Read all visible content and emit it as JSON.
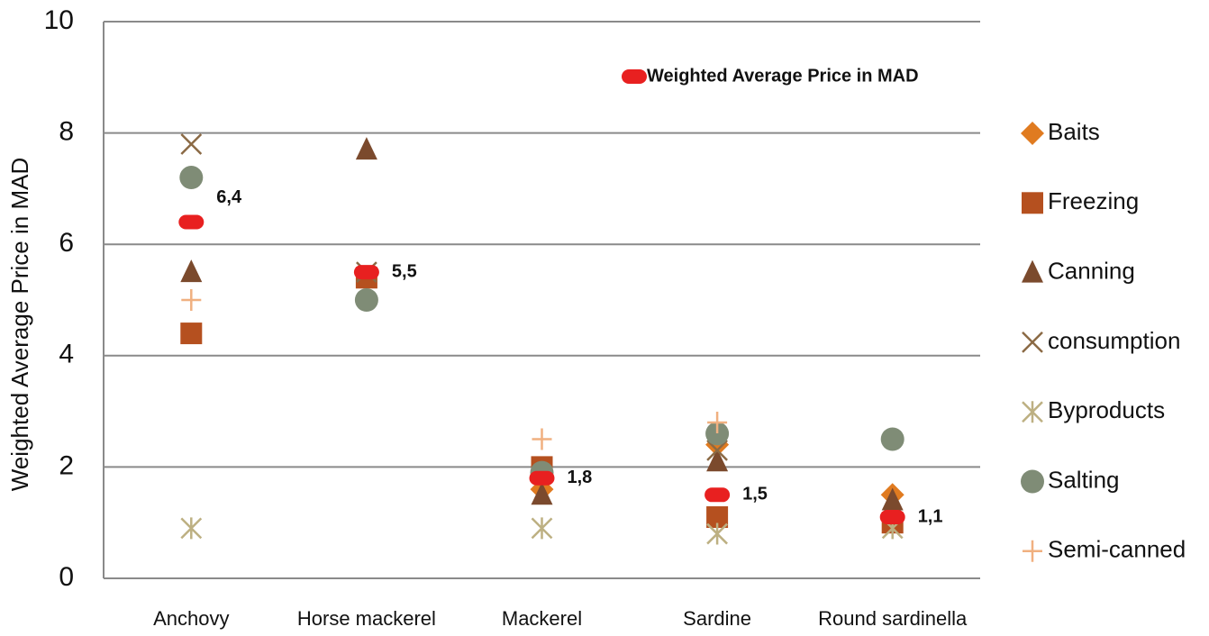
{
  "chart_data": {
    "type": "scatter",
    "ylabel": "Weighted Average Price in MAD",
    "categories": [
      "Anchovy",
      "Horse mackerel",
      "Mackerel",
      "Sardine",
      "Round sardinella"
    ],
    "ylim": [
      0,
      10
    ],
    "yticks": [
      0,
      2,
      4,
      6,
      8,
      10
    ],
    "grid": true,
    "legend": "right",
    "series": [
      {
        "name": "Baits",
        "color": "#e07b20",
        "marker": "diamond",
        "values": [
          null,
          null,
          1.6,
          2.4,
          1.5
        ]
      },
      {
        "name": "Freezing",
        "color": "#b5501f",
        "marker": "square",
        "values": [
          4.4,
          5.4,
          2.0,
          1.1,
          1.0
        ]
      },
      {
        "name": "Canning",
        "color": "#7b4a2d",
        "marker": "triangle",
        "values": [
          5.5,
          7.7,
          1.5,
          2.1,
          1.4
        ]
      },
      {
        "name": "consumption",
        "color": "#8b6a45",
        "marker": "x",
        "values": [
          7.8,
          5.5,
          null,
          2.3,
          null
        ]
      },
      {
        "name": "Byproducts",
        "color": "#bdb082",
        "marker": "asterisk",
        "values": [
          0.9,
          null,
          0.9,
          0.8,
          0.9
        ]
      },
      {
        "name": "Salting",
        "color": "#7f8c76",
        "marker": "circle",
        "values": [
          7.2,
          5.0,
          1.9,
          2.6,
          2.5
        ]
      },
      {
        "name": "Semi-canned",
        "color": "#f0b080",
        "marker": "plus",
        "values": [
          5.0,
          null,
          2.5,
          2.8,
          null
        ]
      },
      {
        "name": "Weighted Average Price in MAD",
        "color": "#e82020",
        "marker": "pill",
        "legend": "top",
        "values": [
          6.4,
          5.5,
          1.8,
          1.5,
          1.1
        ],
        "value_labels": [
          "6,4",
          "5,5",
          "1,8",
          "1,5",
          "1,1"
        ]
      }
    ]
  }
}
